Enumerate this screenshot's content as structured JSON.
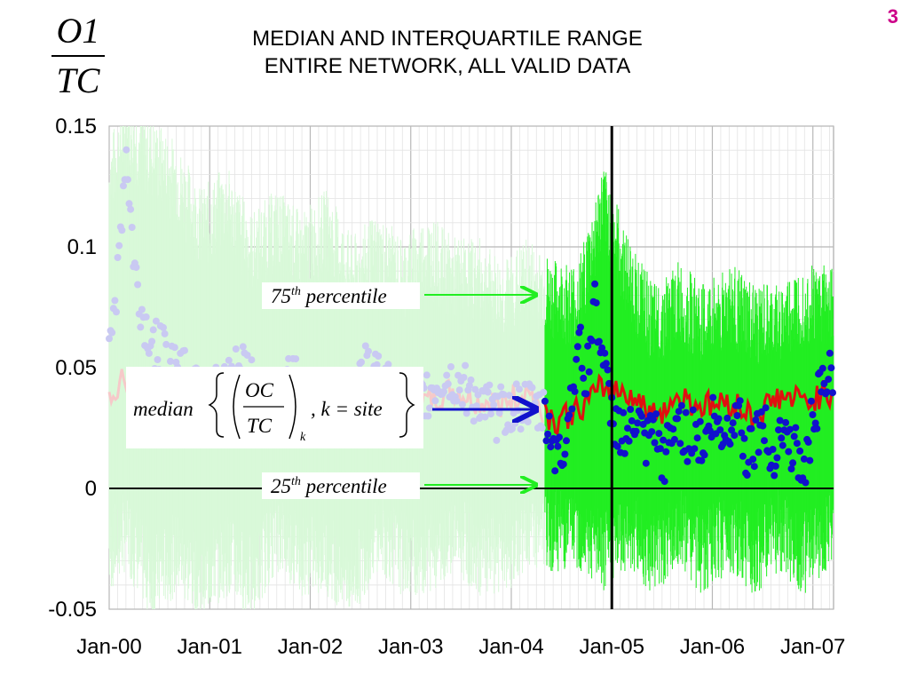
{
  "slide_number": "3",
  "fraction": {
    "numerator": "O1",
    "denominator": "TC"
  },
  "title_lines": [
    "MEDIAN AND INTERQUARTILE RANGE",
    "ENTIRE NETWORK, ALL VALID DATA"
  ],
  "colors": {
    "percentile_band": "#22ee22",
    "percentile_band_faded": "#d9f9d9",
    "median_line": "#e01010",
    "median_line_faded": "#f6c9c9",
    "site_points": "#1111cc",
    "site_points_faded": "#c9c9f2",
    "grid": "#c8c8c8",
    "marker_line": "#000000"
  },
  "annotations": {
    "p75": {
      "prefix": "75",
      "sup": "th",
      "text": " percentile"
    },
    "p25": {
      "prefix": "25",
      "sup": "th",
      "text": " percentile"
    },
    "median": {
      "word": "median",
      "num": "OC",
      "den": "TC",
      "sub": "k",
      "rest": ", k = site"
    }
  },
  "chart_data": {
    "type": "line",
    "title": "MEDIAN AND INTERQUARTILE RANGE ENTIRE NETWORK, ALL VALID DATA",
    "ylabel": "O1/TC",
    "xlabel": "",
    "ylim": [
      -0.05,
      0.15
    ],
    "xlim": [
      "2000-01-01",
      "2007-03-15"
    ],
    "yticks": [
      "-0.05",
      "0",
      "0.05",
      "0.1",
      "0.15"
    ],
    "xticks": [
      "Jan-00",
      "Jan-01",
      "Jan-02",
      "Jan-03",
      "Jan-04",
      "Jan-05",
      "Jan-06",
      "Jan-07"
    ],
    "grid": true,
    "faded_before": "2004-05",
    "vertical_marker": "2005-01",
    "series": [
      {
        "name": "75th percentile",
        "x": [
          "2000-01",
          "2000-03",
          "2000-06",
          "2000-09",
          "2000-12",
          "2001-03",
          "2001-06",
          "2001-09",
          "2001-12",
          "2002-03",
          "2002-06",
          "2002-09",
          "2002-12",
          "2003-03",
          "2003-06",
          "2003-09",
          "2003-12",
          "2004-03",
          "2004-06",
          "2004-09",
          "2004-12",
          "2005-03",
          "2005-06",
          "2005-09",
          "2005-12",
          "2006-03",
          "2006-06",
          "2006-09",
          "2006-12",
          "2007-03"
        ],
        "values": [
          0.12,
          0.14,
          0.13,
          0.12,
          0.1,
          0.11,
          0.09,
          0.1,
          0.09,
          0.1,
          0.08,
          0.09,
          0.08,
          0.09,
          0.08,
          0.08,
          0.07,
          0.08,
          0.07,
          0.07,
          0.11,
          0.08,
          0.06,
          0.07,
          0.06,
          0.07,
          0.06,
          0.06,
          0.07,
          0.07
        ]
      },
      {
        "name": "median",
        "x": [
          "2000-01",
          "2000-03",
          "2000-06",
          "2000-09",
          "2000-12",
          "2001-03",
          "2001-06",
          "2001-09",
          "2001-12",
          "2002-03",
          "2002-06",
          "2002-09",
          "2002-12",
          "2003-03",
          "2003-06",
          "2003-09",
          "2003-12",
          "2004-03",
          "2004-06",
          "2004-09",
          "2004-12",
          "2005-03",
          "2005-06",
          "2005-09",
          "2005-12",
          "2006-03",
          "2006-06",
          "2006-09",
          "2006-12",
          "2007-03"
        ],
        "values": [
          0.04,
          0.045,
          0.03,
          0.035,
          0.03,
          0.035,
          0.03,
          0.04,
          0.035,
          0.035,
          0.03,
          0.04,
          0.035,
          0.035,
          0.04,
          0.035,
          0.035,
          0.04,
          0.028,
          0.032,
          0.042,
          0.04,
          0.03,
          0.038,
          0.034,
          0.036,
          0.03,
          0.038,
          0.036,
          0.04
        ]
      },
      {
        "name": "25th percentile",
        "x": [
          "2000-01",
          "2000-03",
          "2000-06",
          "2000-09",
          "2000-12",
          "2001-03",
          "2001-06",
          "2001-09",
          "2001-12",
          "2002-03",
          "2002-06",
          "2002-09",
          "2002-12",
          "2003-03",
          "2003-06",
          "2003-09",
          "2003-12",
          "2004-03",
          "2004-06",
          "2004-09",
          "2004-12",
          "2005-03",
          "2005-06",
          "2005-09",
          "2005-12",
          "2006-03",
          "2006-06",
          "2006-09",
          "2006-12",
          "2007-03"
        ],
        "values": [
          -0.02,
          -0.01,
          -0.03,
          -0.02,
          -0.03,
          -0.02,
          -0.03,
          -0.01,
          -0.02,
          -0.02,
          -0.03,
          -0.01,
          -0.02,
          -0.02,
          -0.01,
          -0.02,
          -0.02,
          -0.01,
          -0.01,
          -0.01,
          -0.02,
          -0.01,
          -0.02,
          -0.01,
          -0.02,
          -0.01,
          -0.02,
          -0.01,
          -0.02,
          -0.01
        ]
      }
    ],
    "site_points": {
      "x": [
        "2000-01",
        "2000-02",
        "2000-03",
        "2000-04",
        "2000-05",
        "2000-06",
        "2000-08",
        "2000-10",
        "2000-12",
        "2001-02",
        "2001-05",
        "2001-08",
        "2001-11",
        "2002-02",
        "2002-05",
        "2002-08",
        "2002-11",
        "2003-02",
        "2003-05",
        "2003-08",
        "2003-11",
        "2004-02",
        "2004-05",
        "2004-06",
        "2004-07",
        "2004-08",
        "2004-09",
        "2004-10",
        "2004-11",
        "2004-12",
        "2005-01",
        "2005-02",
        "2005-03",
        "2005-04",
        "2005-05",
        "2005-06",
        "2005-07",
        "2005-08",
        "2005-09",
        "2005-10",
        "2005-11",
        "2005-12",
        "2006-01",
        "2006-02",
        "2006-03",
        "2006-04",
        "2006-05",
        "2006-06",
        "2006-07",
        "2006-08",
        "2006-09",
        "2006-10",
        "2006-11",
        "2006-12",
        "2007-01",
        "2007-02",
        "2007-03"
      ],
      "values": [
        0.065,
        0.085,
        0.14,
        0.09,
        0.07,
        0.06,
        0.055,
        0.05,
        0.045,
        0.04,
        0.05,
        0.035,
        0.045,
        0.04,
        0.035,
        0.05,
        0.04,
        0.035,
        0.045,
        0.04,
        0.03,
        0.035,
        0.03,
        0.02,
        0.01,
        0.035,
        0.06,
        0.045,
        0.08,
        0.05,
        0.03,
        0.025,
        0.02,
        0.03,
        0.015,
        0.025,
        0.01,
        0.02,
        0.03,
        0.02,
        0.025,
        0.015,
        0.03,
        0.02,
        0.025,
        0.035,
        0.015,
        0.02,
        0.03,
        0.01,
        0.025,
        0.02,
        0.015,
        0.005,
        0.03,
        0.04,
        0.045
      ]
    }
  }
}
